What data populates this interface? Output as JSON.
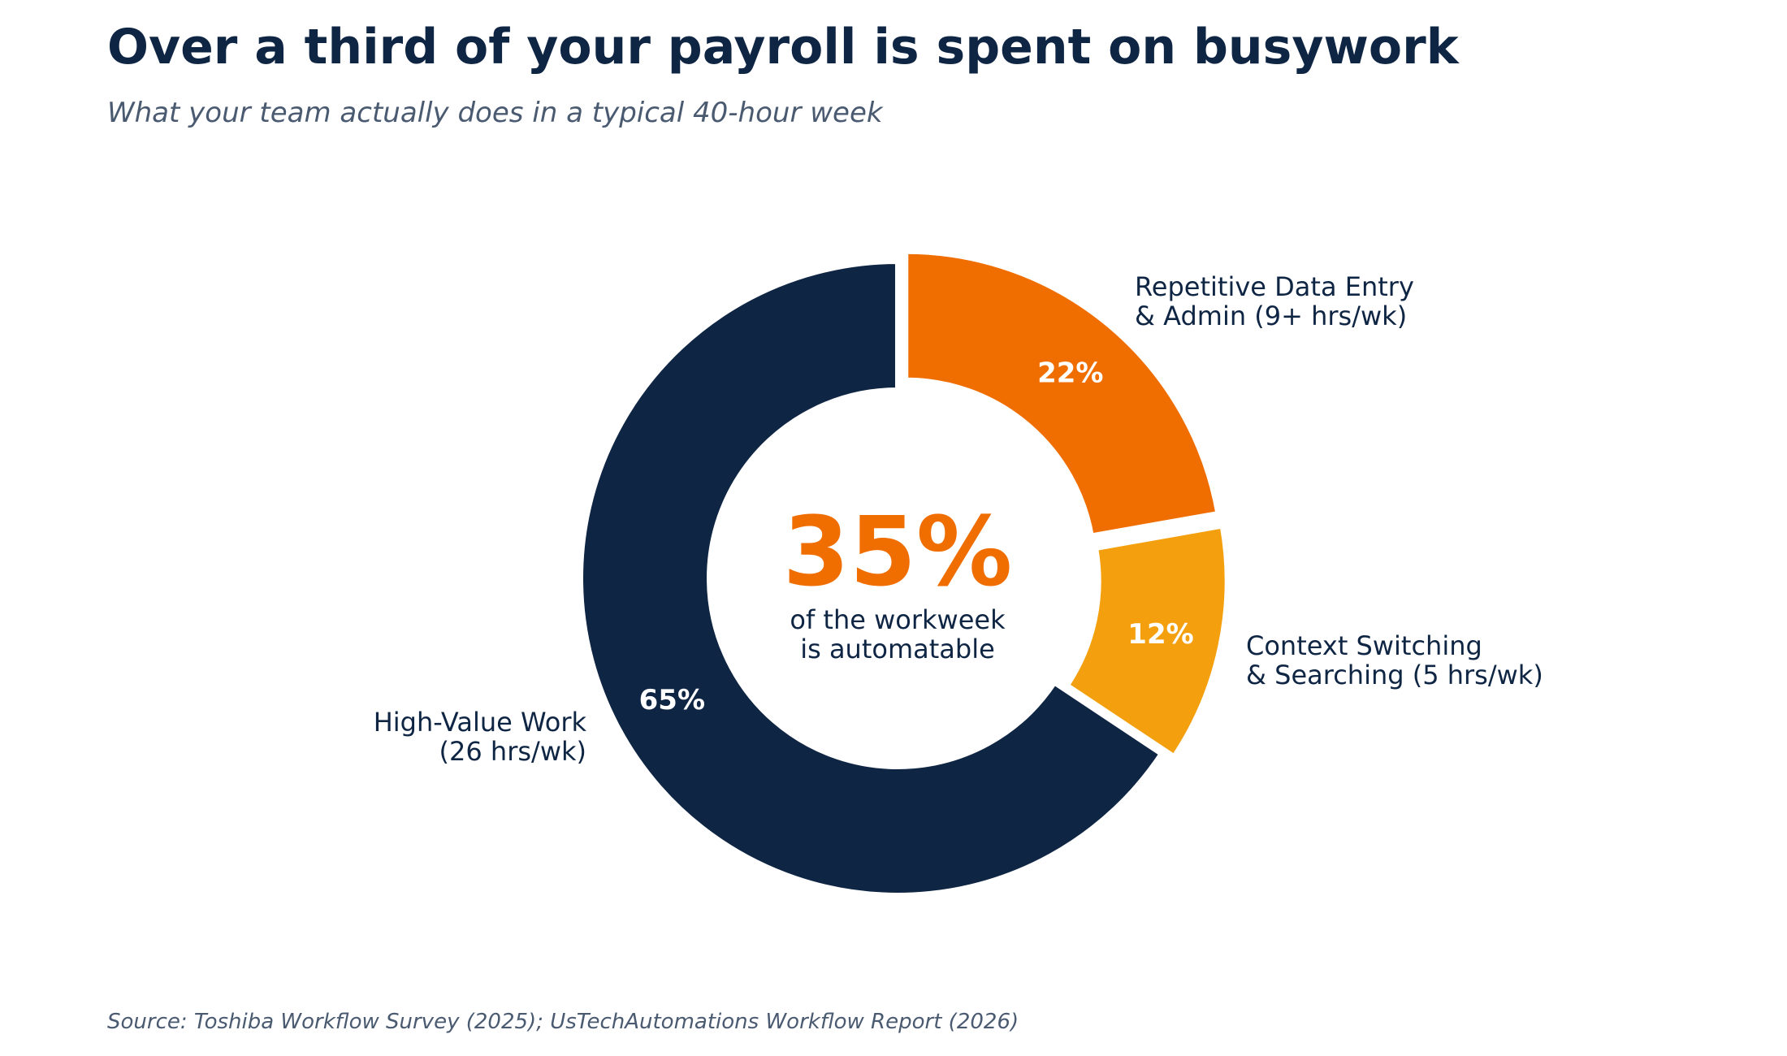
{
  "chart_data": {
    "type": "pie",
    "title": "Over a third of your payroll is spent on busywork",
    "subtitle": "What your team actually does in a typical 40-hour week",
    "source": "Source: Toshiba Workflow Survey (2025); UsTechAutomations Workflow Report (2026)",
    "slices": [
      {
        "label_lines": [
          "Repetitive Data Entry",
          "& Admin  (9+ hrs/wk)"
        ],
        "value": 22,
        "pct_label": "22%",
        "color": "#f06e00",
        "exploded": true
      },
      {
        "label_lines": [
          "Context Switching",
          "& Searching  (5 hrs/wk)"
        ],
        "value": 12,
        "pct_label": "12%",
        "color": "#f4a00e",
        "exploded": true
      },
      {
        "label_lines": [
          "High-Value Work",
          "(26 hrs/wk)"
        ],
        "value": 65,
        "pct_label": "65%",
        "color": "#0f2544",
        "exploded": false
      }
    ],
    "donut": true,
    "center": {
      "value": "35%",
      "value_color": "#f06e00",
      "lines": [
        "of the workweek",
        "is automatable"
      ]
    }
  }
}
